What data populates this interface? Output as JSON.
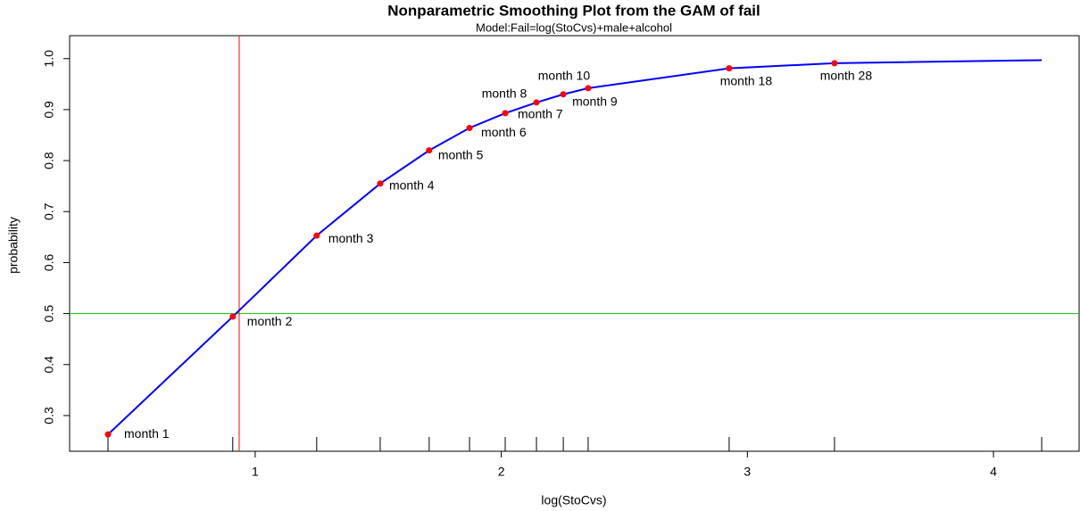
{
  "chart_data": {
    "type": "line",
    "title": "Nonparametric Smoothing Plot from the GAM of fail",
    "subtitle": "Model:Fail=log(StoCvs)+male+alcohol",
    "x_label": "log(StoCvs)",
    "y_label": "probability",
    "xlim": [
      0.246,
      4.348
    ],
    "ylim": [
      0.23,
      1.045
    ],
    "xticks": [
      1,
      2,
      3,
      4
    ],
    "yticks": [
      0.3,
      0.4,
      0.5,
      0.6,
      0.7,
      0.8,
      0.9,
      {
        "value": 1,
        "label": "1.0"
      }
    ],
    "curve": {
      "color": "#0000ff",
      "x": [
        0.402,
        0.909,
        1.25,
        1.508,
        1.707,
        1.871,
        2.016,
        2.143,
        2.252,
        2.353,
        2.926,
        3.354,
        4.196
      ],
      "y": [
        0.263,
        0.494,
        0.653,
        0.755,
        0.82,
        0.864,
        0.893,
        0.914,
        0.93,
        0.942,
        0.981,
        0.991,
        0.997
      ]
    },
    "points": {
      "color": "#ff0000",
      "labels": [
        "month 1",
        "month 2",
        "month 3",
        "month 4",
        "month 5",
        "month 6",
        "month 7",
        "month 8",
        "month 9",
        "month 10",
        "month 18",
        "month 28"
      ],
      "x": [
        0.402,
        0.909,
        1.25,
        1.508,
        1.707,
        1.871,
        2.016,
        2.143,
        2.252,
        2.353,
        2.926,
        3.354
      ],
      "y": [
        0.263,
        0.494,
        0.653,
        0.755,
        0.82,
        0.864,
        0.893,
        0.914,
        0.93,
        0.942,
        0.981,
        0.991
      ]
    },
    "vline": {
      "x": 0.935,
      "color": "#ff0000"
    },
    "hline": {
      "y": 0.5,
      "color": "#00cc00"
    },
    "rug": true
  }
}
